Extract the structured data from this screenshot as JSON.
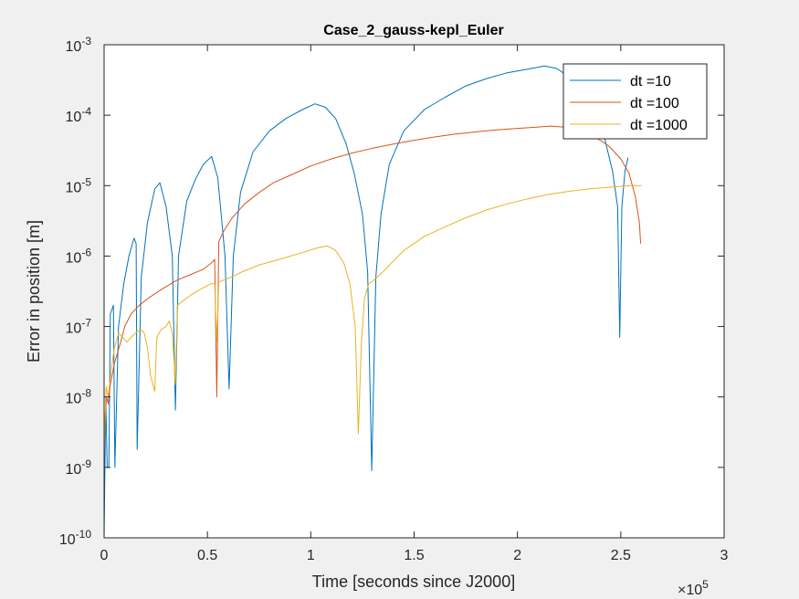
{
  "chart_data": {
    "type": "line",
    "title": "Case_2_gauss-kepl_Euler",
    "xlabel": "Time [seconds since J2000]",
    "ylabel": "Error in position [m]",
    "x_exponent_label": "×10",
    "x_exponent_power": "5",
    "xlim": [
      0,
      300000
    ],
    "ylim": [
      1e-10,
      0.001
    ],
    "yscale": "log",
    "grid": false,
    "legend_position": "top-right",
    "x_ticks": [
      {
        "value": 0,
        "label": "0"
      },
      {
        "value": 50000,
        "label": "0.5"
      },
      {
        "value": 100000,
        "label": "1"
      },
      {
        "value": 150000,
        "label": "1.5"
      },
      {
        "value": 200000,
        "label": "2"
      },
      {
        "value": 250000,
        "label": "2.5"
      },
      {
        "value": 300000,
        "label": "3"
      }
    ],
    "y_ticks": [
      {
        "value": 1e-10,
        "base": "10",
        "exp": "-10"
      },
      {
        "value": 1e-09,
        "base": "10",
        "exp": "-9"
      },
      {
        "value": 1e-08,
        "base": "10",
        "exp": "-8"
      },
      {
        "value": 1e-07,
        "base": "10",
        "exp": "-7"
      },
      {
        "value": 1e-06,
        "base": "10",
        "exp": "-6"
      },
      {
        "value": 1e-05,
        "base": "10",
        "exp": "-5"
      },
      {
        "value": 0.0001,
        "base": "10",
        "exp": "-4"
      },
      {
        "value": 0.001,
        "base": "10",
        "exp": "-3"
      }
    ],
    "series": [
      {
        "name": "dt =10",
        "color": "#0072bd",
        "points": [
          [
            0,
            1e-10
          ],
          [
            800,
            1e-08
          ],
          [
            1500,
            1e-09
          ],
          [
            2300,
            1e-09
          ],
          [
            3000,
            1.5e-07
          ],
          [
            4500,
            2e-07
          ],
          [
            5200,
            1e-09
          ],
          [
            7000,
            1e-07
          ],
          [
            9500,
            4e-07
          ],
          [
            12000,
            1e-06
          ],
          [
            14500,
            1.8e-06
          ],
          [
            15500,
            1.5e-06
          ],
          [
            16000,
            1.8e-09
          ],
          [
            18000,
            5e-07
          ],
          [
            21000,
            3e-06
          ],
          [
            24500,
            9e-06
          ],
          [
            27000,
            1.1e-05
          ],
          [
            30000,
            5e-06
          ],
          [
            33000,
            1e-06
          ],
          [
            34500,
            6.5e-09
          ],
          [
            36000,
            1e-06
          ],
          [
            40000,
            6e-06
          ],
          [
            44000,
            1.2e-05
          ],
          [
            48000,
            2e-05
          ],
          [
            52000,
            2.6e-05
          ],
          [
            55000,
            1.3e-05
          ],
          [
            58500,
            1e-06
          ],
          [
            60500,
            1.3e-08
          ],
          [
            62500,
            1e-06
          ],
          [
            66000,
            8e-06
          ],
          [
            72000,
            3e-05
          ],
          [
            80000,
            6e-05
          ],
          [
            88000,
            9e-05
          ],
          [
            96000,
            0.00012
          ],
          [
            102000,
            0.000145
          ],
          [
            107000,
            0.00013
          ],
          [
            112000,
            9e-05
          ],
          [
            117000,
            4e-05
          ],
          [
            121000,
            1.5e-05
          ],
          [
            125000,
            4e-06
          ],
          [
            127500,
            6e-07
          ],
          [
            129500,
            9e-10
          ],
          [
            131500,
            5e-07
          ],
          [
            134000,
            4e-06
          ],
          [
            138000,
            2e-05
          ],
          [
            145000,
            6e-05
          ],
          [
            155000,
            0.00012
          ],
          [
            165000,
            0.00018
          ],
          [
            175000,
            0.00026
          ],
          [
            185000,
            0.00033
          ],
          [
            195000,
            0.0004
          ],
          [
            205000,
            0.00045
          ],
          [
            213000,
            0.0005
          ],
          [
            219000,
            0.00046
          ],
          [
            225000,
            0.00035
          ],
          [
            231000,
            0.00022
          ],
          [
            237000,
            0.00012
          ],
          [
            242000,
            5e-05
          ],
          [
            246000,
            1.6e-05
          ],
          [
            248500,
            5e-06
          ],
          [
            249500,
            7e-08
          ],
          [
            250500,
            5e-06
          ],
          [
            252000,
            1.6e-05
          ],
          [
            253500,
            2.5e-05
          ]
        ]
      },
      {
        "name": "dt =100",
        "color": "#d95319",
        "points": [
          [
            0,
            2e-09
          ],
          [
            500,
            5e-09
          ],
          [
            1200,
            1e-08
          ],
          [
            2000,
            8e-09
          ],
          [
            3000,
            1.5e-08
          ],
          [
            5000,
            3e-08
          ],
          [
            8000,
            6e-08
          ],
          [
            10000,
            1e-07
          ],
          [
            13000,
            1.5e-07
          ],
          [
            17000,
            2e-07
          ],
          [
            22000,
            2.6e-07
          ],
          [
            28000,
            3.4e-07
          ],
          [
            35000,
            4.5e-07
          ],
          [
            42000,
            5.5e-07
          ],
          [
            48000,
            6.5e-07
          ],
          [
            52000,
            8e-07
          ],
          [
            53500,
            9e-07
          ],
          [
            54500,
            1e-08
          ],
          [
            55500,
            1.6e-06
          ],
          [
            58000,
            2.3e-06
          ],
          [
            62000,
            3.5e-06
          ],
          [
            68000,
            5.5e-06
          ],
          [
            75000,
            8e-06
          ],
          [
            82000,
            1.1e-05
          ],
          [
            90000,
            1.4e-05
          ],
          [
            100000,
            1.9e-05
          ],
          [
            110000,
            2.4e-05
          ],
          [
            120000,
            2.9e-05
          ],
          [
            130000,
            3.4e-05
          ],
          [
            140000,
            3.9e-05
          ],
          [
            150000,
            4.4e-05
          ],
          [
            160000,
            4.9e-05
          ],
          [
            170000,
            5.4e-05
          ],
          [
            180000,
            5.8e-05
          ],
          [
            190000,
            6.2e-05
          ],
          [
            200000,
            6.5e-05
          ],
          [
            210000,
            6.8e-05
          ],
          [
            216000,
            7e-05
          ],
          [
            222000,
            6.8e-05
          ],
          [
            230000,
            6e-05
          ],
          [
            238000,
            4.8e-05
          ],
          [
            244000,
            3.7e-05
          ],
          [
            250000,
            2.4e-05
          ],
          [
            254000,
            1.5e-05
          ],
          [
            257000,
            7e-06
          ],
          [
            259000,
            3e-06
          ],
          [
            259600,
            1.5e-06
          ]
        ]
      },
      {
        "name": "dt =1000",
        "color": "#edb120",
        "points": [
          [
            0,
            2e-09
          ],
          [
            1000,
            1.4e-08
          ],
          [
            2000,
            1e-08
          ],
          [
            3500,
            2.5e-08
          ],
          [
            5000,
            5e-08
          ],
          [
            7000,
            8e-08
          ],
          [
            9000,
            7e-08
          ],
          [
            11000,
            6e-08
          ],
          [
            13000,
            7e-08
          ],
          [
            16000,
            8.5e-08
          ],
          [
            18000,
            9e-08
          ],
          [
            19500,
            8e-08
          ],
          [
            21000,
            5e-08
          ],
          [
            22500,
            2e-08
          ],
          [
            24500,
            1.2e-08
          ],
          [
            25500,
            7e-08
          ],
          [
            27500,
            9e-08
          ],
          [
            30000,
            1e-07
          ],
          [
            31500,
            1.2e-07
          ],
          [
            33000,
            8e-08
          ],
          [
            34500,
            1.5e-08
          ],
          [
            35500,
            2e-07
          ],
          [
            38000,
            2.3e-07
          ],
          [
            42000,
            2.8e-07
          ],
          [
            46000,
            3.3e-07
          ],
          [
            50000,
            3.8e-07
          ],
          [
            52000,
            4.1e-07
          ],
          [
            53500,
            4e-07
          ],
          [
            54500,
            6e-08
          ],
          [
            55500,
            4.3e-07
          ],
          [
            60000,
            4.8e-07
          ],
          [
            67000,
            6e-07
          ],
          [
            75000,
            7.5e-07
          ],
          [
            85000,
            9e-07
          ],
          [
            95000,
            1.1e-06
          ],
          [
            103000,
            1.3e-06
          ],
          [
            108000,
            1.4e-06
          ],
          [
            112000,
            1.2e-06
          ],
          [
            116000,
            8e-07
          ],
          [
            119000,
            4e-07
          ],
          [
            121500,
            1e-07
          ],
          [
            123000,
            3e-09
          ],
          [
            124500,
            6e-08
          ],
          [
            126000,
            2.5e-07
          ],
          [
            128000,
            4e-07
          ],
          [
            130000,
            4.4e-07
          ],
          [
            135000,
            6e-07
          ],
          [
            145000,
            1.2e-06
          ],
          [
            155000,
            1.9e-06
          ],
          [
            165000,
            2.6e-06
          ],
          [
            175000,
            3.5e-06
          ],
          [
            185000,
            4.5e-06
          ],
          [
            195000,
            5.5e-06
          ],
          [
            205000,
            6.5e-06
          ],
          [
            215000,
            7.5e-06
          ],
          [
            225000,
            8.3e-06
          ],
          [
            235000,
            9e-06
          ],
          [
            245000,
            9.5e-06
          ],
          [
            255000,
            1e-05
          ],
          [
            260000,
            1e-05
          ]
        ]
      }
    ]
  }
}
